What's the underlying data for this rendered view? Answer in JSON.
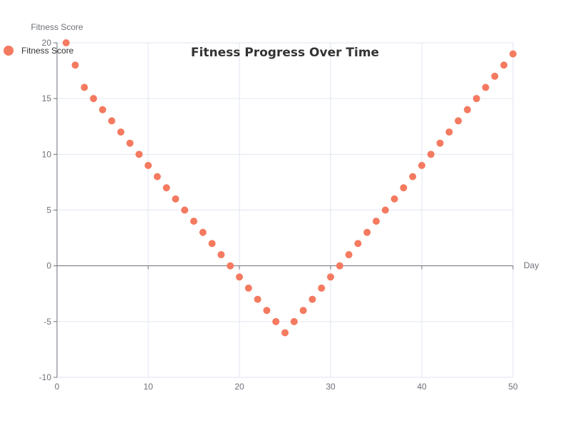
{
  "chart_data": {
    "type": "scatter",
    "title": "Fitness Progress Over Time",
    "xlabel": "Day",
    "ylabel": "Fitness Score",
    "xlim": [
      0,
      50
    ],
    "ylim": [
      -10,
      20
    ],
    "x_ticks": [
      0,
      10,
      20,
      30,
      40,
      50
    ],
    "y_ticks": [
      -10,
      -5,
      0,
      5,
      10,
      15,
      20
    ],
    "x_tick_labels": [
      "0",
      "10",
      "20",
      "30",
      "40",
      "50"
    ],
    "y_tick_labels": [
      "-10",
      "-5",
      "0",
      "5",
      "10",
      "15",
      "20"
    ],
    "grid": true,
    "legend_position": "top-left",
    "series": [
      {
        "name": "Fitness Score",
        "color": "#f47a60",
        "x": [
          1,
          2,
          3,
          4,
          5,
          6,
          7,
          8,
          9,
          10,
          11,
          12,
          13,
          14,
          15,
          16,
          17,
          18,
          19,
          20,
          21,
          22,
          23,
          24,
          25,
          26,
          27,
          28,
          29,
          30,
          31,
          32,
          33,
          34,
          35,
          36,
          37,
          38,
          39,
          40,
          41,
          42,
          43,
          44,
          45,
          46,
          47,
          48,
          49,
          50
        ],
        "y": [
          20,
          18,
          16,
          15,
          14,
          13,
          12,
          11,
          10,
          9,
          8,
          7,
          6,
          5,
          4,
          3,
          2,
          1,
          0,
          -1,
          -2,
          -3,
          -4,
          -5,
          -6,
          -5,
          -4,
          -3,
          -2,
          -1,
          0,
          1,
          2,
          3,
          4,
          5,
          6,
          7,
          8,
          9,
          10,
          11,
          12,
          13,
          14,
          15,
          16,
          17,
          18,
          19
        ]
      }
    ]
  }
}
